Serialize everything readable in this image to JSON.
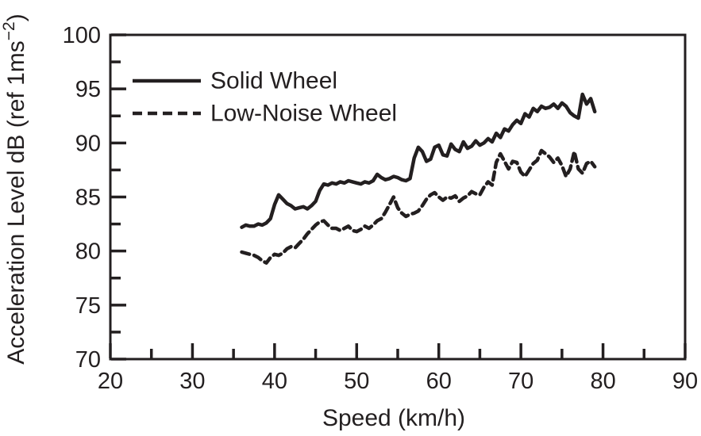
{
  "figure": {
    "background": "#ffffff",
    "ink": "#231f20"
  },
  "chart_data": {
    "type": "line",
    "title": "",
    "xlabel": "Speed (km/h)",
    "ylabel": "Acceleration Level dB (ref 1ms⁻²)",
    "ylabel_parts": {
      "base": "Acceleration Level dB (ref 1ms",
      "superscript": "−2",
      "close": ")"
    },
    "xlim": [
      20,
      90
    ],
    "ylim": [
      70,
      100
    ],
    "xticks": [
      20,
      30,
      40,
      50,
      60,
      70,
      80,
      90
    ],
    "xticks_minor": [
      25,
      35,
      45,
      55,
      65,
      75,
      85
    ],
    "yticks": [
      70,
      75,
      80,
      85,
      90,
      95,
      100
    ],
    "yticks_minor": [
      72.5,
      77.5,
      82.5,
      87.5,
      92.5,
      97.5
    ],
    "grid": false,
    "legend_position": "top-left-inside",
    "x": [
      36,
      36.5,
      37,
      37.5,
      38,
      38.5,
      39,
      39.5,
      40,
      40.5,
      41,
      41.5,
      42,
      42.5,
      43,
      43.5,
      44,
      44.5,
      45,
      45.5,
      46,
      46.5,
      47,
      47.5,
      48,
      48.5,
      49,
      49.5,
      50,
      50.5,
      51,
      51.5,
      52,
      52.5,
      53,
      53.5,
      54,
      54.5,
      55,
      55.5,
      56,
      56.5,
      57,
      57.5,
      58,
      58.5,
      59,
      59.5,
      60,
      60.5,
      61,
      61.5,
      62,
      62.5,
      63,
      63.5,
      64,
      64.5,
      65,
      65.5,
      66,
      66.5,
      67,
      67.5,
      68,
      68.5,
      69,
      69.5,
      70,
      70.5,
      71,
      71.5,
      72,
      72.5,
      73,
      73.5,
      74,
      74.5,
      75,
      75.5,
      76,
      76.5,
      77,
      77.5,
      78,
      78.5,
      79
    ],
    "series": [
      {
        "name": "Solid Wheel",
        "line_style": "solid",
        "color": "#231f20",
        "values": [
          82.2,
          82.4,
          82.3,
          82.3,
          82.5,
          82.4,
          82.6,
          83.0,
          84.3,
          85.2,
          84.8,
          84.4,
          84.2,
          83.9,
          84.0,
          84.1,
          83.9,
          84.2,
          84.6,
          85.6,
          86.2,
          86.1,
          86.3,
          86.2,
          86.4,
          86.3,
          86.5,
          86.4,
          86.3,
          86.2,
          86.4,
          86.3,
          86.5,
          87.1,
          86.8,
          86.6,
          86.7,
          86.9,
          86.8,
          86.6,
          86.5,
          86.7,
          88.6,
          89.6,
          89.2,
          88.3,
          88.5,
          89.6,
          89.8,
          88.9,
          88.8,
          89.9,
          89.4,
          89.2,
          90.1,
          89.5,
          89.7,
          90.2,
          89.8,
          90.0,
          90.4,
          90.1,
          90.9,
          90.5,
          91.3,
          91.1,
          91.7,
          92.1,
          91.8,
          92.7,
          92.4,
          93.2,
          92.9,
          93.4,
          93.2,
          93.3,
          93.6,
          93.2,
          93.7,
          93.4,
          92.8,
          92.5,
          92.3,
          94.5,
          93.6,
          94.1,
          92.9
        ]
      },
      {
        "name": "Low-Noise Wheel",
        "line_style": "dashed",
        "color": "#231f20",
        "values": [
          79.9,
          79.8,
          79.7,
          79.6,
          79.4,
          79.1,
          78.9,
          79.4,
          79.7,
          79.6,
          79.8,
          80.2,
          80.4,
          80.3,
          80.7,
          81.1,
          81.6,
          82.0,
          82.4,
          82.7,
          82.8,
          82.4,
          82.1,
          82.1,
          81.9,
          82.1,
          82.3,
          81.9,
          81.8,
          82.0,
          82.3,
          82.1,
          82.4,
          82.8,
          83.0,
          83.6,
          84.3,
          85.0,
          84.0,
          83.5,
          83.2,
          83.4,
          83.5,
          83.7,
          84.2,
          84.8,
          85.2,
          85.4,
          85.0,
          84.7,
          85.0,
          84.9,
          85.1,
          84.6,
          84.9,
          85.1,
          85.5,
          85.3,
          85.2,
          85.9,
          86.4,
          86.1,
          88.2,
          89.0,
          88.3,
          87.6,
          88.3,
          88.2,
          87.3,
          86.9,
          87.5,
          88.1,
          88.4,
          89.3,
          89.0,
          88.7,
          88.2,
          88.6,
          87.9,
          86.9,
          87.6,
          89.2,
          87.6,
          87.2,
          88.1,
          88.3,
          87.8
        ]
      }
    ]
  }
}
